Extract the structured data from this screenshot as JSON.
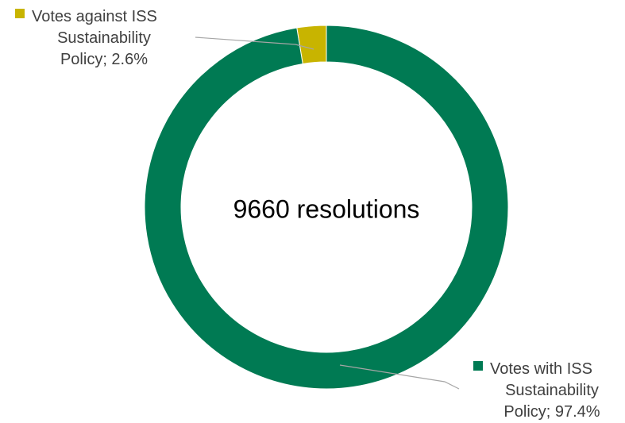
{
  "chart_data": {
    "type": "pie",
    "variant": "donut",
    "center_label": "9660 resolutions",
    "slices": [
      {
        "label_lines": [
          "Votes against ISS",
          "Sustainability",
          "Policy; 2.6%"
        ],
        "value": 2.6,
        "color": "#C8B400"
      },
      {
        "label_lines": [
          "Votes with ISS",
          "Sustainability",
          "Policy; 97.4%"
        ],
        "value": 97.4,
        "color": "#007A53"
      }
    ],
    "legend": "inline labels with leader lines"
  }
}
